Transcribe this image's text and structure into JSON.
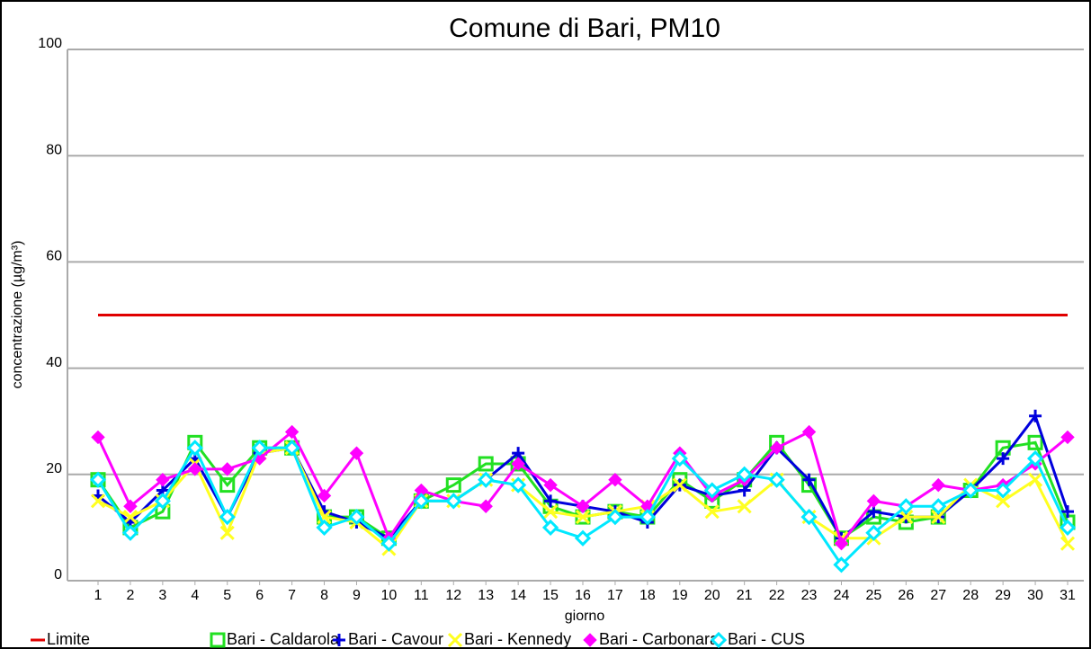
{
  "chart_data": {
    "type": "line",
    "title": "Comune di Bari, PM10",
    "x_label": "giorno",
    "y_label": "concentrazione (µg/m³)",
    "x": [
      1,
      2,
      3,
      4,
      5,
      6,
      7,
      8,
      9,
      10,
      11,
      12,
      13,
      14,
      15,
      16,
      17,
      18,
      19,
      20,
      21,
      22,
      23,
      24,
      25,
      26,
      27,
      28,
      29,
      30,
      31
    ],
    "ylim": [
      0,
      100
    ],
    "yticks": [
      0,
      20,
      40,
      60,
      80,
      100
    ],
    "grid": true,
    "legend": "bottom",
    "series": [
      {
        "name": "Limite",
        "color": "#e00000",
        "marker": "none",
        "values": [
          50,
          50,
          50,
          50,
          50,
          50,
          50,
          50,
          50,
          50,
          50,
          50,
          50,
          50,
          50,
          50,
          50,
          50,
          50,
          50,
          50,
          50,
          50,
          50,
          50,
          50,
          50,
          50,
          50,
          50,
          50
        ]
      },
      {
        "name": "Bari - Caldarola",
        "color": "#22e022",
        "marker": "square",
        "values": [
          19,
          10,
          13,
          26,
          18,
          25,
          25,
          12,
          12,
          8,
          15,
          18,
          22,
          22,
          14,
          12,
          13,
          12,
          19,
          15,
          19,
          26,
          18,
          8,
          12,
          11,
          12,
          17,
          25,
          26,
          11
        ]
      },
      {
        "name": "Bari - Cavour",
        "color": "#0000dd",
        "marker": "plus",
        "values": [
          16,
          11,
          17,
          23,
          12,
          24,
          25,
          13,
          11,
          8,
          15,
          15,
          19,
          24,
          15,
          14,
          13,
          11,
          18,
          16,
          17,
          25,
          19,
          8,
          13,
          12,
          12,
          17,
          23,
          31,
          13
        ]
      },
      {
        "name": "Bari - Kennedy",
        "color": "#ffff20",
        "marker": "cross",
        "values": [
          15,
          12,
          15,
          22,
          9,
          24,
          25,
          12,
          11,
          6,
          15,
          15,
          19,
          18,
          13,
          12,
          13,
          14,
          18,
          13,
          14,
          19,
          12,
          8,
          8,
          12,
          12,
          18,
          15,
          19,
          7
        ]
      },
      {
        "name": "Bari - Carbonara",
        "color": "#ff00ff",
        "marker": "diamond",
        "values": [
          27,
          14,
          19,
          21,
          21,
          23,
          28,
          16,
          24,
          8,
          17,
          15,
          14,
          22,
          18,
          14,
          19,
          14,
          24,
          16,
          19,
          25,
          28,
          7,
          15,
          14,
          18,
          17,
          18,
          22,
          27
        ]
      },
      {
        "name": "Bari - CUS",
        "color": "#00e8ff",
        "marker": "diamond-open",
        "values": [
          19,
          9,
          15,
          25,
          12,
          25,
          25,
          10,
          12,
          7,
          15,
          15,
          19,
          18,
          10,
          8,
          12,
          12,
          23,
          17,
          20,
          19,
          12,
          3,
          9,
          14,
          14,
          17,
          17,
          23,
          10
        ]
      }
    ]
  }
}
